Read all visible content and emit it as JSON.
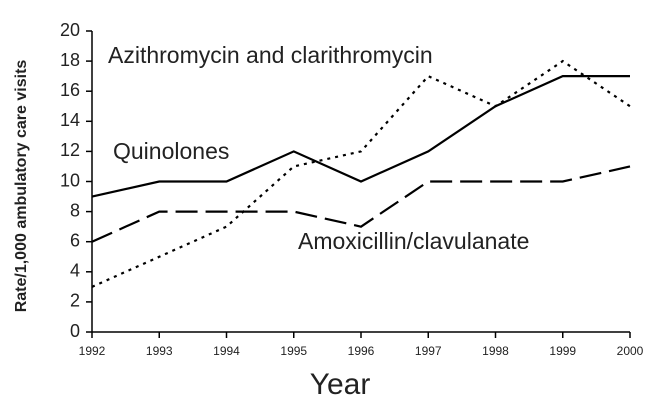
{
  "chart_data": {
    "type": "line",
    "xlabel": "Year",
    "ylabel": "Rate/1,000 ambulatory care visits",
    "categories": [
      "1992",
      "1993",
      "1994",
      "1995",
      "1996",
      "1997",
      "1998",
      "1999",
      "2000"
    ],
    "series": [
      {
        "name": "Azithromycin and clarithromycin",
        "color": "#000000",
        "style": "dotted",
        "values": [
          3,
          5,
          7,
          11,
          12,
          17,
          15,
          18,
          15
        ]
      },
      {
        "name": "Quinolones",
        "color": "#000000",
        "style": "solid",
        "values": [
          9,
          10,
          10,
          12,
          10,
          12,
          15,
          17,
          17
        ]
      },
      {
        "name": "Amoxicillin/clavulanate",
        "color": "#000000",
        "style": "dashed",
        "values": [
          6,
          8,
          8,
          8,
          7,
          10,
          10,
          10,
          11
        ]
      }
    ],
    "ylim": [
      0,
      20
    ],
    "yticks": [
      0,
      2,
      4,
      6,
      8,
      10,
      12,
      14,
      16,
      18,
      20
    ],
    "grid": false
  }
}
